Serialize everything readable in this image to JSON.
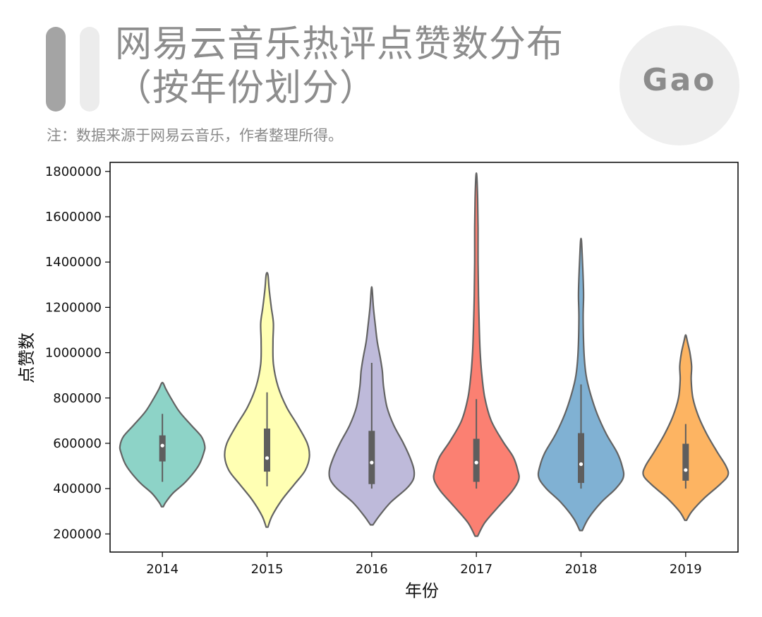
{
  "header": {
    "title": "网易云音乐热评点赞数分布（按年份划分）",
    "subtitle": "注：数据来源于网易云音乐，作者整理所得。",
    "logo_text": "Gao"
  },
  "chart_data": {
    "type": "violin",
    "title": "网易云音乐热评点赞数分布（按年份划分）",
    "xlabel": "年份",
    "ylabel": "点赞数",
    "categories": [
      "2014",
      "2015",
      "2016",
      "2017",
      "2018",
      "2019"
    ],
    "ylim": [
      120000,
      1840000
    ],
    "yticks": [
      200000,
      400000,
      600000,
      800000,
      1000000,
      1200000,
      1400000,
      1600000,
      1800000
    ],
    "ytick_labels": [
      "200000",
      "400000",
      "600000",
      "800000",
      "1000000",
      "1200000",
      "1400000",
      "1600000",
      "1800000"
    ],
    "grid": false,
    "series": [
      {
        "category": "2014",
        "color": "#8dd3c7",
        "min": 320000,
        "max": 865000,
        "q1": 520000,
        "median": 590000,
        "q3": 635000,
        "whisker_low": 430000,
        "whisker_high": 730000,
        "profile": [
          [
            320000,
            0.02
          ],
          [
            340000,
            0.08
          ],
          [
            380000,
            0.25
          ],
          [
            430000,
            0.55
          ],
          [
            500000,
            0.85
          ],
          [
            560000,
            0.98
          ],
          [
            590000,
            1.0
          ],
          [
            630000,
            0.92
          ],
          [
            680000,
            0.68
          ],
          [
            740000,
            0.4
          ],
          [
            800000,
            0.2
          ],
          [
            840000,
            0.08
          ],
          [
            865000,
            0.02
          ]
        ]
      },
      {
        "category": "2015",
        "color": "#ffffb3",
        "min": 230000,
        "max": 1345000,
        "q1": 475000,
        "median": 535000,
        "q3": 665000,
        "whisker_low": 410000,
        "whisker_high": 825000,
        "profile": [
          [
            230000,
            0.02
          ],
          [
            280000,
            0.12
          ],
          [
            350000,
            0.35
          ],
          [
            420000,
            0.65
          ],
          [
            480000,
            0.9
          ],
          [
            540000,
            1.0
          ],
          [
            600000,
            0.95
          ],
          [
            680000,
            0.72
          ],
          [
            760000,
            0.46
          ],
          [
            850000,
            0.26
          ],
          [
            950000,
            0.15
          ],
          [
            1050000,
            0.14
          ],
          [
            1130000,
            0.15
          ],
          [
            1200000,
            0.1
          ],
          [
            1280000,
            0.05
          ],
          [
            1345000,
            0.02
          ]
        ]
      },
      {
        "category": "2016",
        "color": "#bebada",
        "min": 240000,
        "max": 1280000,
        "q1": 420000,
        "median": 515000,
        "q3": 655000,
        "whisker_low": 400000,
        "whisker_high": 955000,
        "profile": [
          [
            240000,
            0.03
          ],
          [
            280000,
            0.18
          ],
          [
            340000,
            0.45
          ],
          [
            400000,
            0.82
          ],
          [
            440000,
            0.98
          ],
          [
            480000,
            1.0
          ],
          [
            530000,
            0.92
          ],
          [
            600000,
            0.75
          ],
          [
            680000,
            0.52
          ],
          [
            760000,
            0.36
          ],
          [
            850000,
            0.28
          ],
          [
            920000,
            0.25
          ],
          [
            980000,
            0.2
          ],
          [
            1050000,
            0.13
          ],
          [
            1130000,
            0.08
          ],
          [
            1200000,
            0.04
          ],
          [
            1280000,
            0.01
          ]
        ]
      },
      {
        "category": "2017",
        "color": "#fb8072",
        "min": 190000,
        "max": 1780000,
        "q1": 430000,
        "median": 515000,
        "q3": 620000,
        "whisker_low": 400000,
        "whisker_high": 795000,
        "profile": [
          [
            190000,
            0.03
          ],
          [
            250000,
            0.2
          ],
          [
            320000,
            0.52
          ],
          [
            390000,
            0.85
          ],
          [
            440000,
            1.0
          ],
          [
            480000,
            0.98
          ],
          [
            540000,
            0.87
          ],
          [
            610000,
            0.62
          ],
          [
            700000,
            0.35
          ],
          [
            800000,
            0.2
          ],
          [
            900000,
            0.13
          ],
          [
            1000000,
            0.09
          ],
          [
            1100000,
            0.07
          ],
          [
            1250000,
            0.05
          ],
          [
            1400000,
            0.04
          ],
          [
            1550000,
            0.04
          ],
          [
            1680000,
            0.03
          ],
          [
            1780000,
            0.01
          ]
        ]
      },
      {
        "category": "2018",
        "color": "#80b1d3",
        "min": 215000,
        "max": 1495000,
        "q1": 425000,
        "median": 508000,
        "q3": 645000,
        "whisker_low": 400000,
        "whisker_high": 860000,
        "profile": [
          [
            215000,
            0.03
          ],
          [
            270000,
            0.18
          ],
          [
            340000,
            0.48
          ],
          [
            400000,
            0.82
          ],
          [
            450000,
            1.0
          ],
          [
            500000,
            0.97
          ],
          [
            560000,
            0.85
          ],
          [
            640000,
            0.6
          ],
          [
            730000,
            0.38
          ],
          [
            820000,
            0.22
          ],
          [
            900000,
            0.12
          ],
          [
            1000000,
            0.07
          ],
          [
            1150000,
            0.05
          ],
          [
            1250000,
            0.06
          ],
          [
            1330000,
            0.05
          ],
          [
            1420000,
            0.03
          ],
          [
            1495000,
            0.01
          ]
        ]
      },
      {
        "category": "2019",
        "color": "#fdb462",
        "min": 260000,
        "max": 1075000,
        "q1": 435000,
        "median": 482000,
        "q3": 598000,
        "whisker_low": 400000,
        "whisker_high": 685000,
        "profile": [
          [
            260000,
            0.02
          ],
          [
            300000,
            0.15
          ],
          [
            360000,
            0.45
          ],
          [
            420000,
            0.82
          ],
          [
            460000,
            1.0
          ],
          [
            500000,
            0.95
          ],
          [
            560000,
            0.75
          ],
          [
            640000,
            0.5
          ],
          [
            720000,
            0.3
          ],
          [
            800000,
            0.17
          ],
          [
            880000,
            0.13
          ],
          [
            940000,
            0.14
          ],
          [
            1000000,
            0.1
          ],
          [
            1050000,
            0.04
          ],
          [
            1075000,
            0.01
          ]
        ]
      }
    ]
  }
}
